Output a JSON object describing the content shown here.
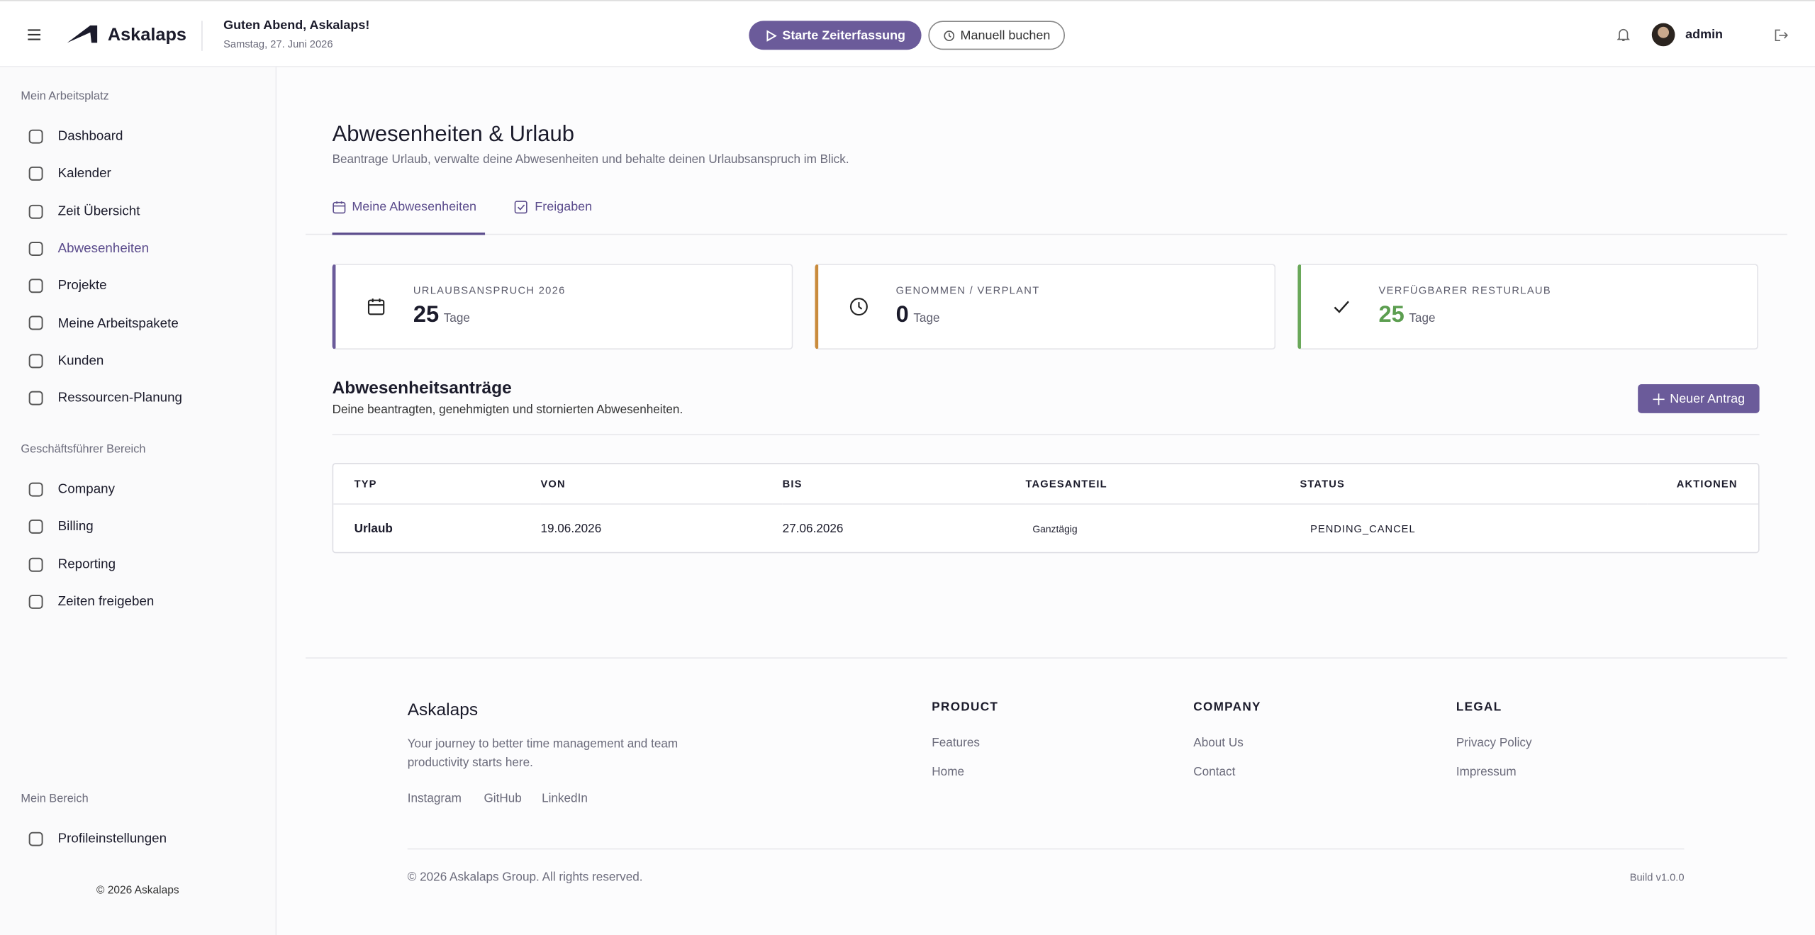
{
  "header": {
    "brand": "Askalaps",
    "greeting": "Guten Abend, Askalaps!",
    "date": "Samstag, 27. Juni 2026",
    "start_button": "Starte Zeiterfassung",
    "manual_button": "Manuell buchen",
    "user": "admin"
  },
  "sidebar": {
    "sections": [
      {
        "title": "Mein Arbeitsplatz",
        "items": [
          "Dashboard",
          "Kalender",
          "Zeit Übersicht",
          "Abwesenheiten",
          "Projekte",
          "Meine Arbeitspakete",
          "Kunden",
          "Ressourcen-Planung"
        ]
      },
      {
        "title": "Geschäftsführer Bereich",
        "items": [
          "Company",
          "Billing",
          "Reporting",
          "Zeiten freigeben"
        ]
      },
      {
        "title": "Mein Bereich",
        "items": [
          "Profileinstellungen"
        ]
      }
    ],
    "active": "Abwesenheiten",
    "copyright": "© 2026 Askalaps"
  },
  "page": {
    "title": "Abwesenheiten & Urlaub",
    "subtitle": "Beantrage Urlaub, verwalte deine Abwesenheiten und behalte deinen Urlaubsanspruch im Blick.",
    "tabs": [
      "Meine Abwesenheiten",
      "Freigaben"
    ]
  },
  "cards": [
    {
      "label": "URLAUBSANSPRUCH 2026",
      "value": 25,
      "unit": "Tage"
    },
    {
      "label": "GENOMMEN / VERPLANT",
      "value": 0,
      "unit": "Tage"
    },
    {
      "label": "VERFÜGBARER RESTURLAUB",
      "value": 25,
      "unit": "Tage"
    }
  ],
  "requests": {
    "title": "Abwesenheitsanträge",
    "subtitle": "Deine beantragten, genehmigten und stornierten Abwesenheiten.",
    "new_button": "Neuer Antrag",
    "table": {
      "columns": [
        "TYP",
        "VON",
        "BIS",
        "TAGESANTEIL",
        "STATUS",
        "AKTIONEN"
      ],
      "rows": [
        [
          "Urlaub",
          "19.06.2026",
          "27.06.2026",
          "Ganztägig",
          "PENDING_CANCEL"
        ]
      ]
    }
  },
  "footer": {
    "brand": "Askalaps",
    "tagline": "Your journey to better time management and team productivity starts here.",
    "social": [
      "Instagram",
      "GitHub",
      "LinkedIn"
    ],
    "columns": [
      {
        "title": "PRODUCT",
        "links": [
          "Features",
          "Home"
        ]
      },
      {
        "title": "COMPANY",
        "links": [
          "About Us",
          "Contact"
        ]
      },
      {
        "title": "LEGAL",
        "links": [
          "Privacy Policy",
          "Impressum"
        ]
      }
    ],
    "copyright": "© 2026 Askalaps Group. All rights reserved.",
    "build": "Build v1.0.0"
  }
}
